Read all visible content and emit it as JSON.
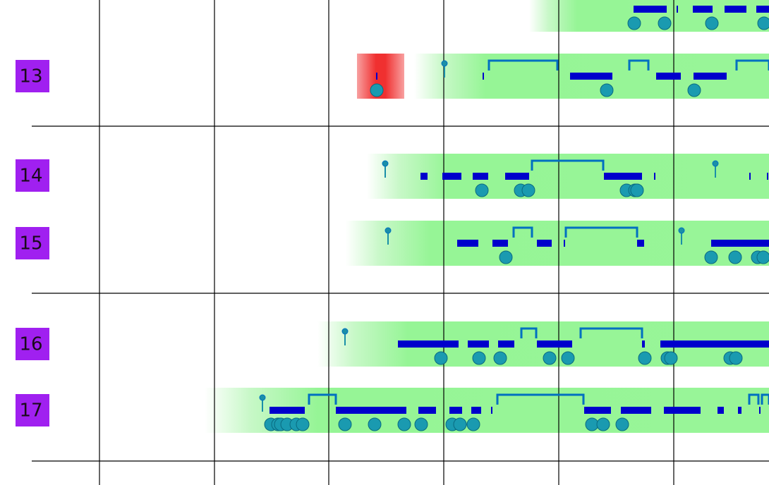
{
  "rows": [
    {
      "label": "13"
    },
    {
      "label": "14"
    },
    {
      "label": "15"
    },
    {
      "label": "16"
    },
    {
      "label": "17"
    }
  ]
}
